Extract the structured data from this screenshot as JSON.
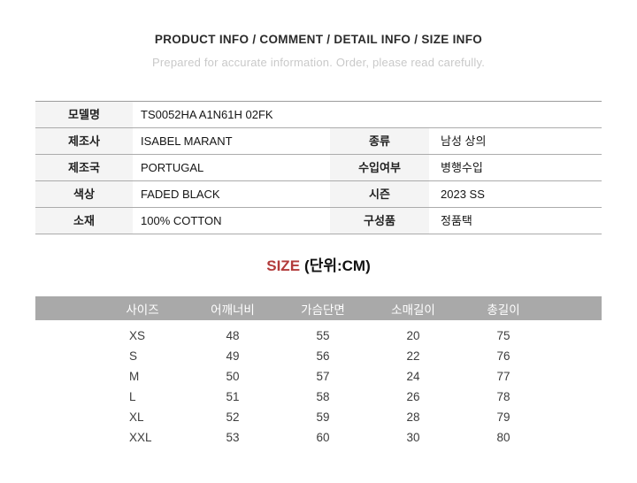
{
  "header": {
    "title": "PRODUCT INFO / COMMENT / DETAIL INFO / SIZE INFO",
    "subtitle": "Prepared for accurate information. Order, please read carefully."
  },
  "product_info": {
    "rows": [
      {
        "label": "모델명",
        "value": "TS0052HA A1N61H 02FK"
      },
      {
        "label": "제조사",
        "value": "ISABEL MARANT",
        "label2": "종류",
        "value2": "남성 상의"
      },
      {
        "label": "제조국",
        "value": "PORTUGAL",
        "label2": "수입여부",
        "value2": "병행수입"
      },
      {
        "label": "색상",
        "value": "FADED BLACK",
        "label2": "시즌",
        "value2": "2023 SS"
      },
      {
        "label": "소재",
        "value": "100% COTTON",
        "label2": "구성품",
        "value2": "정품택"
      }
    ]
  },
  "size_section": {
    "heading": "SIZE",
    "unit": "(단위:CM)",
    "table": {
      "columns": [
        "사이즈",
        "어깨너비",
        "가슴단면",
        "소매길이",
        "총길이"
      ],
      "rows": [
        {
          "size": "XS",
          "shoulder": "48",
          "chest": "55",
          "sleeve": "20",
          "length": "75"
        },
        {
          "size": "S",
          "shoulder": "49",
          "chest": "56",
          "sleeve": "22",
          "length": "76"
        },
        {
          "size": "M",
          "shoulder": "50",
          "chest": "57",
          "sleeve": "24",
          "length": "77"
        },
        {
          "size": "L",
          "shoulder": "51",
          "chest": "58",
          "sleeve": "26",
          "length": "78"
        },
        {
          "size": "XL",
          "shoulder": "52",
          "chest": "59",
          "sleeve": "28",
          "length": "79"
        },
        {
          "size": "XXL",
          "shoulder": "53",
          "chest": "60",
          "sleeve": "30",
          "length": "80"
        }
      ]
    }
  },
  "appearance": {
    "accent_red": "#b23b3b",
    "size_header_bg": "#a9a9a9",
    "label_cell_bg": "#f4f4f4",
    "table_border": "#ababab",
    "subtitle_gray": "#c9c9c9"
  }
}
